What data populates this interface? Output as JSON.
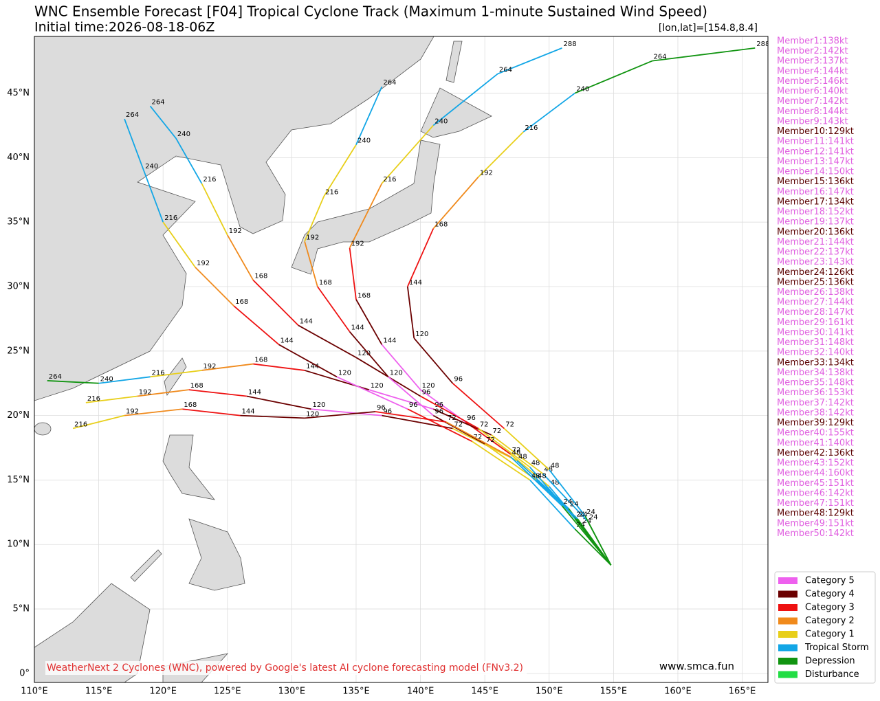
{
  "header": {
    "title": "WNC Ensemble Forecast [F04] Tropical Cyclone Track (Maximum 1-minute Sustained Wind Speed)",
    "subtitle": "Initial time:2026-08-18-06Z",
    "position": "[lon,lat]=[154.8,8.4]"
  },
  "chart_data": {
    "type": "track-map",
    "xlim": [
      110,
      167
    ],
    "ylim": [
      -0.7,
      49.4
    ],
    "grid": true,
    "xticks": [
      {
        "value": 110,
        "label": "110°E"
      },
      {
        "value": 115,
        "label": "115°E"
      },
      {
        "value": 120,
        "label": "120°E"
      },
      {
        "value": 125,
        "label": "125°E"
      },
      {
        "value": 130,
        "label": "130°E"
      },
      {
        "value": 135,
        "label": "135°E"
      },
      {
        "value": 140,
        "label": "140°E"
      },
      {
        "value": 145,
        "label": "145°E"
      },
      {
        "value": 150,
        "label": "150°E"
      },
      {
        "value": 155,
        "label": "155°E"
      },
      {
        "value": 160,
        "label": "160°E"
      },
      {
        "value": 165,
        "label": "165°E"
      }
    ],
    "yticks": [
      {
        "value": 0,
        "label": "0°"
      },
      {
        "value": 5,
        "label": "5°N"
      },
      {
        "value": 10,
        "label": "10°N"
      },
      {
        "value": 15,
        "label": "15°N"
      },
      {
        "value": 20,
        "label": "20°N"
      },
      {
        "value": 25,
        "label": "25°N"
      },
      {
        "value": 30,
        "label": "30°N"
      },
      {
        "value": 35,
        "label": "35°N"
      },
      {
        "value": 40,
        "label": "40°N"
      },
      {
        "value": 45,
        "label": "45°N"
      }
    ],
    "legend": [
      {
        "label": "Category 5",
        "color": "#ee60ee"
      },
      {
        "label": "Category 4",
        "color": "#6b0000"
      },
      {
        "label": "Category 3",
        "color": "#ee1111"
      },
      {
        "label": "Category 2",
        "color": "#f08a1c"
      },
      {
        "label": "Category 1",
        "color": "#e8cf1a"
      },
      {
        "label": "Tropical Storm",
        "color": "#12a6e6"
      },
      {
        "label": "Depression",
        "color": "#119411"
      },
      {
        "label": "Disturbance",
        "color": "#22dd44"
      }
    ],
    "series": [
      {
        "x": [
          154.8,
          152.5,
          150,
          147,
          143.5,
          140,
          137,
          135,
          134.5,
          137,
          141,
          146,
          151
        ],
        "values": [
          8.4,
          11.5,
          14.5,
          17,
          19.5,
          22,
          25.5,
          29,
          33,
          38,
          42.5,
          46.5,
          48.5
        ],
        "hours": [
          null,
          24,
          48,
          72,
          96,
          120,
          144,
          168,
          192,
          216,
          240,
          264,
          288
        ],
        "segment_colors": [
          "#119411",
          "#12a6e6",
          "#e8cf1a",
          "#ee1111",
          "#ee60ee",
          "#ee60ee",
          "#6b0000",
          "#ee1111",
          "#f08a1c",
          "#e8cf1a",
          "#12a6e6",
          "#12a6e6"
        ]
      },
      {
        "x": [
          154.8,
          153,
          149.5,
          145.5,
          141,
          136,
          131,
          127,
          123,
          119,
          115,
          111
        ],
        "values": [
          8.4,
          11.8,
          15.5,
          18.5,
          20.5,
          22,
          23.5,
          24,
          23.5,
          23,
          22.5,
          22.7
        ],
        "hours": [
          null,
          24,
          48,
          72,
          96,
          120,
          144,
          168,
          192,
          216,
          240,
          264
        ],
        "segment_colors": [
          "#119411",
          "#12a6e6",
          "#e8cf1a",
          "#6b0000",
          "#ee60ee",
          "#6b0000",
          "#ee1111",
          "#f08a1c",
          "#e8cf1a",
          "#12a6e6",
          "#119411"
        ]
      },
      {
        "x": [
          154.8,
          152,
          148.5,
          144.5,
          140,
          135,
          130.5,
          127,
          125,
          123,
          121,
          119
        ],
        "values": [
          8.4,
          12,
          16,
          19,
          21.5,
          24.5,
          27,
          30.5,
          34,
          38,
          41.5,
          44
        ],
        "hours": [
          null,
          24,
          48,
          72,
          96,
          120,
          144,
          168,
          192,
          216,
          240,
          264
        ],
        "segment_colors": [
          "#119411",
          "#12a6e6",
          "#e8cf1a",
          "#ee1111",
          "#6b0000",
          "#6b0000",
          "#ee1111",
          "#f08a1c",
          "#e8cf1a",
          "#12a6e6",
          "#12a6e6"
        ]
      },
      {
        "x": [
          154.8,
          152.8,
          150,
          146.5,
          142.5,
          139.5,
          139,
          141,
          144.5,
          148,
          152,
          158,
          166
        ],
        "values": [
          8.4,
          12.2,
          15.8,
          19,
          22.5,
          26,
          30,
          34.5,
          38.5,
          42,
          45,
          47.5,
          48.5
        ],
        "hours": [
          null,
          24,
          48,
          72,
          96,
          120,
          144,
          168,
          192,
          216,
          240,
          264,
          288
        ],
        "segment_colors": [
          "#119411",
          "#12a6e6",
          "#e8cf1a",
          "#ee1111",
          "#6b0000",
          "#6b0000",
          "#ee1111",
          "#f08a1c",
          "#e8cf1a",
          "#12a6e6",
          "#119411",
          "#119411"
        ]
      },
      {
        "x": [
          154.8,
          151.5,
          147.5,
          142.5,
          137,
          131.5,
          126.5,
          122,
          118,
          114
        ],
        "values": [
          8.4,
          12.8,
          16.5,
          19,
          20,
          20.5,
          21.5,
          22,
          21.5,
          21
        ],
        "hours": [
          null,
          24,
          48,
          72,
          96,
          120,
          144,
          168,
          192,
          216
        ],
        "segment_colors": [
          "#119411",
          "#12a6e6",
          "#e8cf1a",
          "#6b0000",
          "#ee60ee",
          "#6b0000",
          "#ee1111",
          "#f08a1c",
          "#e8cf1a"
        ]
      },
      {
        "x": [
          154.8,
          152,
          148.5,
          144,
          139,
          133.5,
          129,
          125.5,
          122.5,
          120,
          118.5,
          117
        ],
        "values": [
          8.4,
          11.2,
          15,
          18,
          20.5,
          23,
          25.5,
          28.5,
          31.5,
          35,
          39,
          43
        ],
        "hours": [
          null,
          24,
          48,
          72,
          96,
          120,
          144,
          168,
          192,
          216,
          240,
          264
        ],
        "segment_colors": [
          "#119411",
          "#12a6e6",
          "#e8cf1a",
          "#ee1111",
          "#ee60ee",
          "#6b0000",
          "#ee1111",
          "#f08a1c",
          "#e8cf1a",
          "#12a6e6",
          "#12a6e6"
        ]
      },
      {
        "x": [
          154.8,
          152.2,
          149,
          145,
          141,
          137.5,
          134.5,
          132,
          131,
          132.5,
          135,
          137
        ],
        "values": [
          8.4,
          12,
          15,
          17.8,
          20,
          23,
          26.5,
          30,
          33.5,
          37,
          41,
          45.5
        ],
        "hours": [
          null,
          24,
          48,
          72,
          96,
          120,
          144,
          168,
          192,
          216,
          240,
          264
        ],
        "segment_colors": [
          "#119411",
          "#12a6e6",
          "#e8cf1a",
          "#6b0000",
          "#ee60ee",
          "#6b0000",
          "#ee1111",
          "#f08a1c",
          "#e8cf1a",
          "#e8cf1a",
          "#12a6e6"
        ]
      },
      {
        "x": [
          154.8,
          151,
          147,
          142,
          136.5,
          131,
          126,
          121.5,
          117,
          113
        ],
        "values": [
          8.4,
          13,
          16.8,
          19.5,
          20.3,
          19.8,
          20,
          20.5,
          20,
          19
        ],
        "hours": [
          null,
          24,
          48,
          72,
          96,
          120,
          144,
          168,
          192,
          216
        ],
        "segment_colors": [
          "#119411",
          "#12a6e6",
          "#f08a1c",
          "#ee1111",
          "#6b0000",
          "#6b0000",
          "#ee1111",
          "#f08a1c",
          "#e8cf1a"
        ]
      }
    ]
  },
  "members": [
    {
      "label": "Member1:138kt",
      "color": "#e060e0"
    },
    {
      "label": "Member2:142kt",
      "color": "#e060e0"
    },
    {
      "label": "Member3:137kt",
      "color": "#e060e0"
    },
    {
      "label": "Member4:144kt",
      "color": "#e060e0"
    },
    {
      "label": "Member5:146kt",
      "color": "#e060e0"
    },
    {
      "label": "Member6:140kt",
      "color": "#e060e0"
    },
    {
      "label": "Member7:142kt",
      "color": "#e060e0"
    },
    {
      "label": "Member8:144kt",
      "color": "#e060e0"
    },
    {
      "label": "Member9:143kt",
      "color": "#e060e0"
    },
    {
      "label": "Member10:129kt",
      "color": "#5a0000"
    },
    {
      "label": "Member11:141kt",
      "color": "#e060e0"
    },
    {
      "label": "Member12:141kt",
      "color": "#e060e0"
    },
    {
      "label": "Member13:147kt",
      "color": "#e060e0"
    },
    {
      "label": "Member14:150kt",
      "color": "#e060e0"
    },
    {
      "label": "Member15:136kt",
      "color": "#5a0000"
    },
    {
      "label": "Member16:147kt",
      "color": "#e060e0"
    },
    {
      "label": "Member17:134kt",
      "color": "#5a0000"
    },
    {
      "label": "Member18:152kt",
      "color": "#e060e0"
    },
    {
      "label": "Member19:137kt",
      "color": "#e060e0"
    },
    {
      "label": "Member20:136kt",
      "color": "#5a0000"
    },
    {
      "label": "Member21:144kt",
      "color": "#e060e0"
    },
    {
      "label": "Member22:137kt",
      "color": "#e060e0"
    },
    {
      "label": "Member23:143kt",
      "color": "#e060e0"
    },
    {
      "label": "Member24:126kt",
      "color": "#5a0000"
    },
    {
      "label": "Member25:136kt",
      "color": "#5a0000"
    },
    {
      "label": "Member26:138kt",
      "color": "#e060e0"
    },
    {
      "label": "Member27:144kt",
      "color": "#e060e0"
    },
    {
      "label": "Member28:147kt",
      "color": "#e060e0"
    },
    {
      "label": "Member29:161kt",
      "color": "#e060e0"
    },
    {
      "label": "Member30:141kt",
      "color": "#e060e0"
    },
    {
      "label": "Member31:148kt",
      "color": "#e060e0"
    },
    {
      "label": "Member32:140kt",
      "color": "#e060e0"
    },
    {
      "label": "Member33:134kt",
      "color": "#5a0000"
    },
    {
      "label": "Member34:138kt",
      "color": "#e060e0"
    },
    {
      "label": "Member35:148kt",
      "color": "#e060e0"
    },
    {
      "label": "Member36:153kt",
      "color": "#e060e0"
    },
    {
      "label": "Member37:142kt",
      "color": "#e060e0"
    },
    {
      "label": "Member38:142kt",
      "color": "#e060e0"
    },
    {
      "label": "Member39:129kt",
      "color": "#5a0000"
    },
    {
      "label": "Member40:155kt",
      "color": "#e060e0"
    },
    {
      "label": "Member41:140kt",
      "color": "#e060e0"
    },
    {
      "label": "Member42:136kt",
      "color": "#5a0000"
    },
    {
      "label": "Member43:152kt",
      "color": "#e060e0"
    },
    {
      "label": "Member44:160kt",
      "color": "#e060e0"
    },
    {
      "label": "Member45:151kt",
      "color": "#e060e0"
    },
    {
      "label": "Member46:142kt",
      "color": "#e060e0"
    },
    {
      "label": "Member47:151kt",
      "color": "#e060e0"
    },
    {
      "label": "Member48:129kt",
      "color": "#5a0000"
    },
    {
      "label": "Member49:151kt",
      "color": "#e060e0"
    },
    {
      "label": "Member50:142kt",
      "color": "#e060e0"
    }
  ],
  "footer": {
    "credit": "WeatherNext 2 Cyclones (WNC), powered by Google's latest AI cyclone forecasting model (FNv3.2)",
    "site": "www.smca.fun"
  }
}
